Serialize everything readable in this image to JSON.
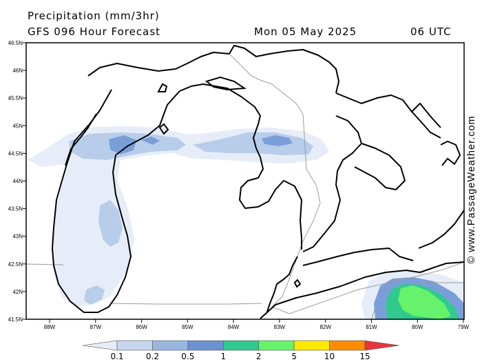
{
  "header": {
    "title": "Precipitation (mm/3hr)",
    "model_line": "GFS 096 Hour Forecast",
    "valid_date": "Mon 05 May 2025",
    "valid_time": "06 UTC"
  },
  "watermark": "© www.PassageWeather.com",
  "axes": {
    "lat_labels": [
      "46.5N",
      "46N",
      "45.5N",
      "45N",
      "44.5N",
      "44N",
      "43.5N",
      "43N",
      "42.5N",
      "42N",
      "41.5N"
    ],
    "lon_labels": [
      "88W",
      "87W",
      "86W",
      "85W",
      "84W",
      "83W",
      "82W",
      "81W",
      "80W",
      "79W"
    ]
  },
  "legend": {
    "labels": [
      "0.1",
      "0.2",
      "0.5",
      "1",
      "2",
      "5",
      "10",
      "15"
    ],
    "colors": [
      "#e8eef8",
      "#c6d6ee",
      "#9ab7df",
      "#6d92d2",
      "#30c98e",
      "#66f26a",
      "#ffe800",
      "#ff8c00",
      "#e8343c"
    ]
  },
  "colors": {
    "coast": "#000000",
    "border": "#9a9a9a",
    "light_precip": "#e6edf8",
    "moderate_precip": "#b8cdea",
    "heavy_precip": "#7a9fd8"
  }
}
